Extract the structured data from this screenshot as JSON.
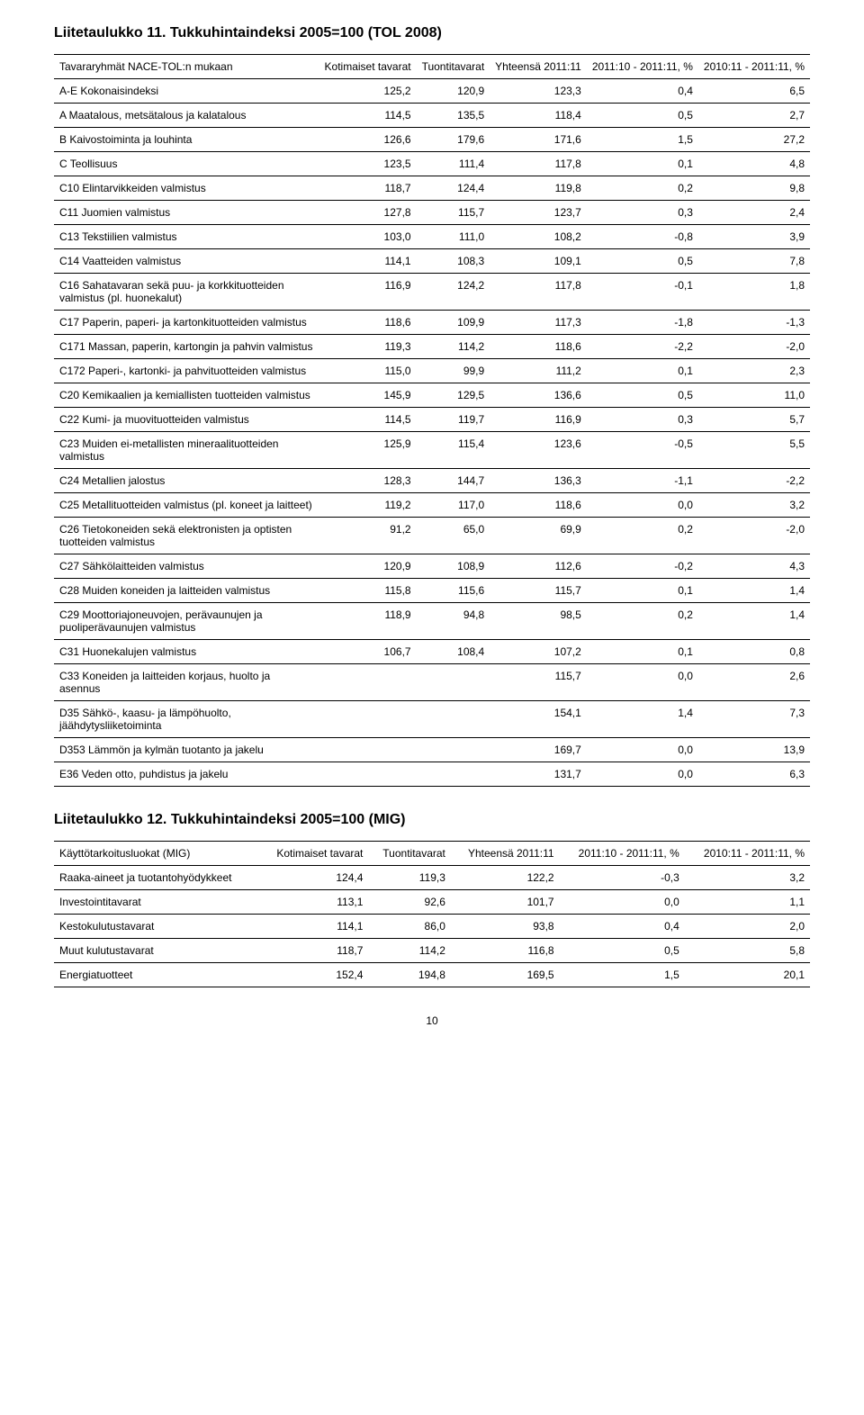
{
  "table11": {
    "title": "Liitetaulukko 11. Tukkuhintaindeksi 2005=100 (TOL 2008)",
    "rowHeader": "Tavararyhmät NACE-TOL:n mukaan",
    "columns": [
      "Kotimaiset tavarat",
      "Tuontitavarat",
      "Yhteensä 2011:11",
      "2011:10 - 2011:11, %",
      "2010:11 - 2011:11, %"
    ],
    "rows": [
      {
        "label": "A-E Kokonaisindeksi",
        "v": [
          "125,2",
          "120,9",
          "123,3",
          "0,4",
          "6,5"
        ]
      },
      {
        "label": "A Maatalous, metsätalous ja kalatalous",
        "v": [
          "114,5",
          "135,5",
          "118,4",
          "0,5",
          "2,7"
        ]
      },
      {
        "label": "B Kaivostoiminta ja louhinta",
        "v": [
          "126,6",
          "179,6",
          "171,6",
          "1,5",
          "27,2"
        ]
      },
      {
        "label": "C Teollisuus",
        "v": [
          "123,5",
          "111,4",
          "117,8",
          "0,1",
          "4,8"
        ]
      },
      {
        "label": "C10 Elintarvikkeiden valmistus",
        "v": [
          "118,7",
          "124,4",
          "119,8",
          "0,2",
          "9,8"
        ]
      },
      {
        "label": "C11 Juomien valmistus",
        "v": [
          "127,8",
          "115,7",
          "123,7",
          "0,3",
          "2,4"
        ]
      },
      {
        "label": "C13 Tekstiilien valmistus",
        "v": [
          "103,0",
          "111,0",
          "108,2",
          "-0,8",
          "3,9"
        ]
      },
      {
        "label": "C14 Vaatteiden valmistus",
        "v": [
          "114,1",
          "108,3",
          "109,1",
          "0,5",
          "7,8"
        ]
      },
      {
        "label": "C16 Sahatavaran sekä puu- ja korkkituotteiden valmistus (pl. huonekalut)",
        "v": [
          "116,9",
          "124,2",
          "117,8",
          "-0,1",
          "1,8"
        ]
      },
      {
        "label": "C17 Paperin, paperi- ja kartonkituotteiden valmistus",
        "v": [
          "118,6",
          "109,9",
          "117,3",
          "-1,8",
          "-1,3"
        ]
      },
      {
        "label": "C171 Massan, paperin, kartongin ja pahvin valmistus",
        "v": [
          "119,3",
          "114,2",
          "118,6",
          "-2,2",
          "-2,0"
        ]
      },
      {
        "label": "C172 Paperi-, kartonki- ja pahvituotteiden valmistus",
        "v": [
          "115,0",
          "99,9",
          "111,2",
          "0,1",
          "2,3"
        ]
      },
      {
        "label": "C20 Kemikaalien ja kemiallisten tuotteiden valmistus",
        "v": [
          "145,9",
          "129,5",
          "136,6",
          "0,5",
          "11,0"
        ]
      },
      {
        "label": "C22 Kumi- ja muovituotteiden valmistus",
        "v": [
          "114,5",
          "119,7",
          "116,9",
          "0,3",
          "5,7"
        ]
      },
      {
        "label": "C23 Muiden ei-metallisten mineraalituotteiden valmistus",
        "v": [
          "125,9",
          "115,4",
          "123,6",
          "-0,5",
          "5,5"
        ]
      },
      {
        "label": "C24 Metallien jalostus",
        "v": [
          "128,3",
          "144,7",
          "136,3",
          "-1,1",
          "-2,2"
        ]
      },
      {
        "label": "C25 Metallituotteiden valmistus (pl. koneet ja laitteet)",
        "v": [
          "119,2",
          "117,0",
          "118,6",
          "0,0",
          "3,2"
        ]
      },
      {
        "label": "C26 Tietokoneiden sekä elektronisten ja optisten tuotteiden valmistus",
        "v": [
          "91,2",
          "65,0",
          "69,9",
          "0,2",
          "-2,0"
        ]
      },
      {
        "label": "C27 Sähkölaitteiden valmistus",
        "v": [
          "120,9",
          "108,9",
          "112,6",
          "-0,2",
          "4,3"
        ]
      },
      {
        "label": "C28 Muiden koneiden ja laitteiden valmistus",
        "v": [
          "115,8",
          "115,6",
          "115,7",
          "0,1",
          "1,4"
        ]
      },
      {
        "label": "C29 Moottoriajoneuvojen, perävaunujen ja puoliperävaunujen valmistus",
        "v": [
          "118,9",
          "94,8",
          "98,5",
          "0,2",
          "1,4"
        ]
      },
      {
        "label": "C31 Huonekalujen valmistus",
        "v": [
          "106,7",
          "108,4",
          "107,2",
          "0,1",
          "0,8"
        ]
      },
      {
        "label": "C33 Koneiden ja laitteiden korjaus, huolto ja asennus",
        "v": [
          "",
          "",
          "115,7",
          "0,0",
          "2,6"
        ]
      },
      {
        "label": "D35 Sähkö-, kaasu- ja lämpöhuolto, jäähdytysliiketoiminta",
        "v": [
          "",
          "",
          "154,1",
          "1,4",
          "7,3"
        ]
      },
      {
        "label": "D353 Lämmön ja kylmän tuotanto ja jakelu",
        "v": [
          "",
          "",
          "169,7",
          "0,0",
          "13,9"
        ]
      },
      {
        "label": "E36 Veden otto, puhdistus ja jakelu",
        "v": [
          "",
          "",
          "131,7",
          "0,0",
          "6,3"
        ]
      }
    ]
  },
  "table12": {
    "title": "Liitetaulukko 12. Tukkuhintaindeksi 2005=100 (MIG)",
    "rowHeader": "Käyttötarkoitusluokat (MIG)",
    "columns": [
      "Kotimaiset tavarat",
      "Tuontitavarat",
      "Yhteensä 2011:11",
      "2011:10 - 2011:11, %",
      "2010:11 - 2011:11, %"
    ],
    "rows": [
      {
        "label": "Raaka-aineet ja tuotantohyödykkeet",
        "v": [
          "124,4",
          "119,3",
          "122,2",
          "-0,3",
          "3,2"
        ]
      },
      {
        "label": "Investointitavarat",
        "v": [
          "113,1",
          "92,6",
          "101,7",
          "0,0",
          "1,1"
        ]
      },
      {
        "label": "Kestokulutustavarat",
        "v": [
          "114,1",
          "86,0",
          "93,8",
          "0,4",
          "2,0"
        ]
      },
      {
        "label": "Muut kulutustavarat",
        "v": [
          "118,7",
          "114,2",
          "116,8",
          "0,5",
          "5,8"
        ]
      },
      {
        "label": "Energiatuotteet",
        "v": [
          "152,4",
          "194,8",
          "169,5",
          "1,5",
          "20,1"
        ]
      }
    ]
  },
  "pageNumber": "10"
}
